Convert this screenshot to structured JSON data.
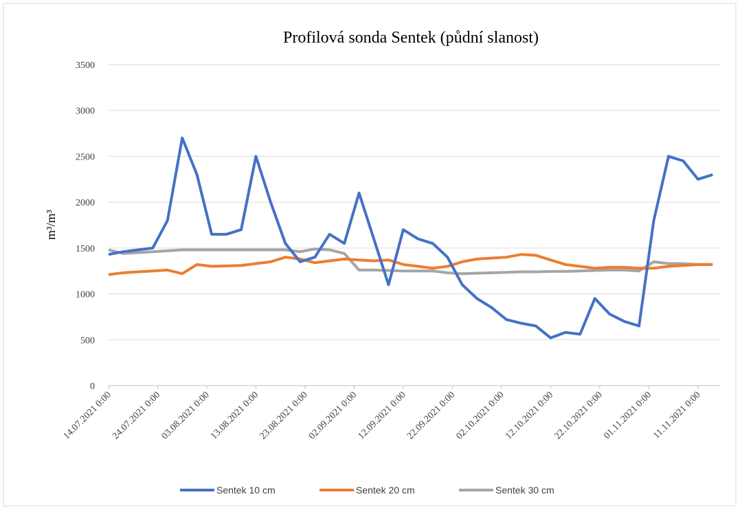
{
  "chart_data": {
    "type": "line",
    "title": "Profilová sonda Sentek (půdní slanost)",
    "ylabel": "m³/m³",
    "x": [
      "14.07.2021 0:00",
      "17.07.2021 0:00",
      "20.07.2021 0:00",
      "23.07.2021 0:00",
      "26.07.2021 0:00",
      "29.07.2021 0:00",
      "01.08.2021 0:00",
      "04.08.2021 0:00",
      "07.08.2021 0:00",
      "10.08.2021 0:00",
      "13.08.2021 0:00",
      "16.08.2021 0:00",
      "19.08.2021 0:00",
      "22.08.2021 0:00",
      "25.08.2021 0:00",
      "28.08.2021 0:00",
      "31.08.2021 0:00",
      "03.09.2021 0:00",
      "06.09.2021 0:00",
      "09.09.2021 0:00",
      "12.09.2021 0:00",
      "15.09.2021 0:00",
      "18.09.2021 0:00",
      "21.09.2021 0:00",
      "24.09.2021 0:00",
      "27.09.2021 0:00",
      "30.09.2021 0:00",
      "03.10.2021 0:00",
      "06.10.2021 0:00",
      "09.10.2021 0:00",
      "12.10.2021 0:00",
      "15.10.2021 0:00",
      "18.10.2021 0:00",
      "21.10.2021 0:00",
      "24.10.2021 0:00",
      "27.10.2021 0:00",
      "30.10.2021 0:00",
      "02.11.2021 0:00",
      "05.11.2021 0:00",
      "08.11.2021 0:00",
      "11.11.2021 0:00",
      "14.11.2021 0:00"
    ],
    "series": [
      {
        "name": "Sentek 10 cm",
        "color": "#4472c4",
        "values": [
          1430,
          1460,
          1480,
          1500,
          1800,
          2700,
          2300,
          1650,
          1650,
          1700,
          2500,
          2000,
          1550,
          1350,
          1400,
          1650,
          1550,
          2100,
          1600,
          1100,
          1700,
          1600,
          1550,
          1400,
          1100,
          950,
          850,
          720,
          680,
          650,
          520,
          580,
          560,
          950,
          780,
          700,
          650,
          1800,
          2500,
          2450,
          2250,
          2300
        ]
      },
      {
        "name": "Sentek 20 cm",
        "color": "#ed7d31",
        "values": [
          1210,
          1230,
          1240,
          1250,
          1260,
          1220,
          1320,
          1300,
          1305,
          1310,
          1330,
          1350,
          1400,
          1380,
          1340,
          1360,
          1380,
          1370,
          1360,
          1370,
          1320,
          1300,
          1280,
          1300,
          1350,
          1380,
          1390,
          1400,
          1430,
          1420,
          1370,
          1320,
          1300,
          1280,
          1290,
          1290,
          1280,
          1280,
          1300,
          1310,
          1320,
          1320
        ]
      },
      {
        "name": "Sentek 30 cm",
        "color": "#a5a5a5",
        "values": [
          1480,
          1440,
          1450,
          1460,
          1470,
          1480,
          1480,
          1480,
          1480,
          1480,
          1480,
          1480,
          1480,
          1460,
          1490,
          1480,
          1440,
          1260,
          1260,
          1255,
          1250,
          1250,
          1250,
          1230,
          1220,
          1225,
          1230,
          1235,
          1240,
          1240,
          1245,
          1245,
          1250,
          1255,
          1260,
          1260,
          1250,
          1350,
          1330,
          1330,
          1320,
          1320
        ]
      }
    ],
    "xlim": [
      "14.07.2021 0:00",
      "15.11.2021 12:00"
    ],
    "xticks": [
      "14.07.2021 0:00",
      "24.07.2021 0:00",
      "03.08.2021 0:00",
      "13.08.2021 0:00",
      "23.08.2021 0:00",
      "02.09.2021 0:00",
      "12.09.2021 0:00",
      "22.09.2021 0:00",
      "02.10.2021 0:00",
      "12.10.2021 0:00",
      "22.10.2021 0:00",
      "01.11.2021 0:00",
      "11.11.2021 0:00"
    ],
    "ylim": [
      0,
      3500
    ],
    "yticks": [
      0,
      500,
      1000,
      1500,
      2000,
      2500,
      3000,
      3500
    ],
    "grid": true,
    "legend": "bottom"
  }
}
